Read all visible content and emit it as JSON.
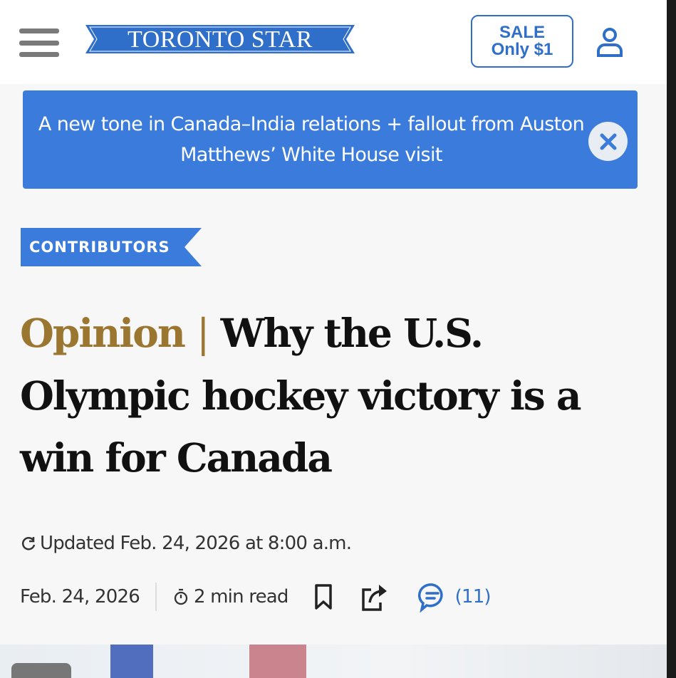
{
  "header": {
    "menu_icon": "hamburger-menu-icon",
    "logo_text": "TORONTO STAR",
    "sale_line1": "SALE",
    "sale_line2": "Only $1",
    "user_icon": "user-account-icon"
  },
  "banner": {
    "text": "A new tone in Canada–India relations + fallout from Auston Matthews’ White House visit",
    "close_icon": "close-icon"
  },
  "article": {
    "section_tag": "CONTRIBUTORS",
    "headline_prefix": "Opinion",
    "headline_separator": "|",
    "headline": "Why the U.S. Olympic hockey victory is a win for Canada",
    "updated": "Updated Feb. 24, 2026 at 8:00 a.m.",
    "date": "Feb. 24, 2026",
    "read_time": "2 min read",
    "comment_count": "(11)"
  },
  "colors": {
    "brand_blue": "#3b7bdb",
    "opinion_gold": "#9a7630",
    "link_blue": "#2f6fca"
  }
}
